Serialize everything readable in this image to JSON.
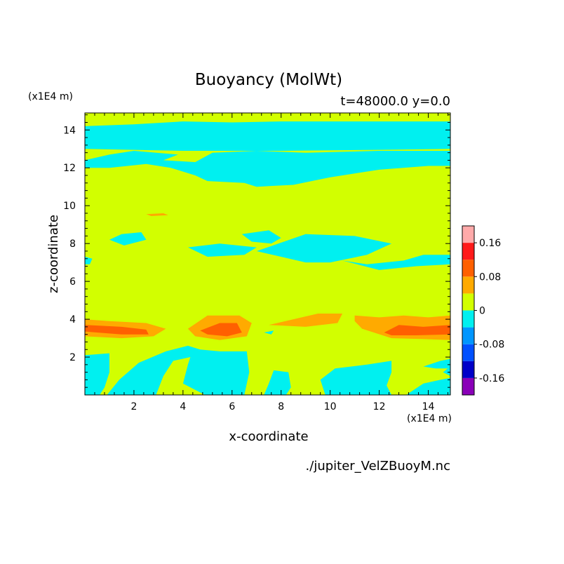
{
  "chart_data": {
    "type": "heatmap",
    "title": "Buoyancy (MolWt)",
    "subtitle": "t=48000.0 y=0.0",
    "xlabel": "x-coordinate",
    "ylabel": "z-coordinate",
    "x_unit": "(x1E4 m)",
    "y_unit": "(x1E4 m)",
    "source": "./jupiter_VelZBuoyM.nc",
    "xlim": [
      0,
      14.9
    ],
    "ylim": [
      0,
      14.9
    ],
    "x_ticks": [
      2,
      4,
      6,
      8,
      10,
      12,
      14
    ],
    "y_ticks": [
      2,
      4,
      6,
      8,
      10,
      12,
      14
    ],
    "colorbar": {
      "levels": [
        -0.2,
        -0.16,
        -0.12,
        -0.08,
        -0.04,
        0,
        0.04,
        0.08,
        0.12,
        0.16,
        0.2
      ],
      "colors": [
        "#8a00b8",
        "#0000c8",
        "#0050ff",
        "#0096ff",
        "#00f0f0",
        "#d2ff00",
        "#ffaa00",
        "#ff6000",
        "#ff1a1a",
        "#ffaaaa"
      ],
      "tick_labels": [
        "0.16",
        "0.08",
        "0",
        "-0.08",
        "-0.16"
      ],
      "tick_values": [
        0.16,
        0.08,
        0,
        -0.08,
        -0.16
      ]
    },
    "background_value": 0.02,
    "regions": [
      {
        "value": -0.02,
        "points": [
          [
            0,
            14.2
          ],
          [
            2,
            14.3
          ],
          [
            4,
            14.45
          ],
          [
            6,
            14.4
          ],
          [
            8,
            14.45
          ],
          [
            10,
            14.45
          ],
          [
            12,
            14.45
          ],
          [
            14.9,
            14.45
          ],
          [
            14.9,
            13.0
          ],
          [
            12,
            12.95
          ],
          [
            8,
            12.9
          ],
          [
            4,
            12.9
          ],
          [
            0,
            13.0
          ]
        ]
      },
      {
        "value": -0.02,
        "points": [
          [
            0,
            12.4
          ],
          [
            1,
            12.7
          ],
          [
            2,
            12.9
          ],
          [
            3.8,
            12.7
          ],
          [
            3.2,
            12.4
          ],
          [
            4.5,
            12.3
          ],
          [
            5.2,
            12.8
          ],
          [
            7,
            12.9
          ],
          [
            9,
            12.8
          ],
          [
            12,
            12.9
          ],
          [
            14.9,
            12.9
          ],
          [
            14.9,
            12.1
          ],
          [
            14,
            12.1
          ],
          [
            12,
            11.9
          ],
          [
            10,
            11.5
          ],
          [
            8.5,
            11.1
          ],
          [
            7,
            11.0
          ],
          [
            6.5,
            11.2
          ],
          [
            5,
            11.3
          ],
          [
            4.5,
            11.6
          ],
          [
            3.5,
            12.0
          ],
          [
            2.5,
            12.2
          ],
          [
            1,
            12.0
          ],
          [
            0,
            12.0
          ]
        ]
      },
      {
        "value": -0.02,
        "points": [
          [
            1,
            8.2
          ],
          [
            1.5,
            8.5
          ],
          [
            2.3,
            8.6
          ],
          [
            2.5,
            8.2
          ],
          [
            1.6,
            7.9
          ]
        ]
      },
      {
        "value": -0.02,
        "points": [
          [
            0,
            7.3
          ],
          [
            0.3,
            7.2
          ],
          [
            0.2,
            6.9
          ],
          [
            0,
            6.9
          ]
        ]
      },
      {
        "value": -0.02,
        "points": [
          [
            4.2,
            7.8
          ],
          [
            5.5,
            8.0
          ],
          [
            7,
            7.8
          ],
          [
            6.5,
            7.4
          ],
          [
            5,
            7.3
          ]
        ]
      },
      {
        "value": -0.02,
        "points": [
          [
            6.4,
            8.5
          ],
          [
            7.5,
            8.7
          ],
          [
            8,
            8.3
          ],
          [
            7.6,
            8.0
          ],
          [
            6.8,
            8.1
          ]
        ]
      },
      {
        "value": -0.02,
        "points": [
          [
            7,
            7.6
          ],
          [
            9,
            8.5
          ],
          [
            11,
            8.4
          ],
          [
            12.5,
            8.0
          ],
          [
            11.5,
            7.4
          ],
          [
            10,
            7.0
          ],
          [
            9,
            7.0
          ],
          [
            8,
            7.3
          ]
        ]
      },
      {
        "value": -0.02,
        "points": [
          [
            10.5,
            7.1
          ],
          [
            11.5,
            6.9
          ],
          [
            13,
            7.1
          ],
          [
            13.8,
            7.4
          ],
          [
            14.9,
            7.4
          ],
          [
            14.9,
            6.9
          ],
          [
            13.5,
            6.8
          ],
          [
            12,
            6.6
          ]
        ]
      },
      {
        "value": -0.02,
        "points": [
          [
            0,
            2.1
          ],
          [
            1,
            2.2
          ],
          [
            1,
            1.2
          ],
          [
            0.8,
            0.4
          ],
          [
            0.6,
            0
          ],
          [
            0,
            0
          ]
        ]
      },
      {
        "value": -0.02,
        "points": [
          [
            0.9,
            0
          ],
          [
            1.4,
            0.8
          ],
          [
            2.2,
            1.7
          ],
          [
            3.3,
            2.3
          ],
          [
            4.2,
            2.6
          ],
          [
            4.7,
            2.4
          ],
          [
            5.5,
            2.3
          ],
          [
            6.6,
            2.3
          ],
          [
            6.7,
            1.2
          ],
          [
            6.5,
            0
          ],
          [
            4.9,
            0
          ],
          [
            4.0,
            0.6
          ],
          [
            4.2,
            1.6
          ],
          [
            4.3,
            2.0
          ],
          [
            3.6,
            1.8
          ],
          [
            3.2,
            1.0
          ],
          [
            2.9,
            0
          ]
        ]
      },
      {
        "value": -0.02,
        "points": [
          [
            7.3,
            0
          ],
          [
            7.5,
            0.6
          ],
          [
            7.7,
            1.3
          ],
          [
            8.3,
            1.2
          ],
          [
            8.4,
            0.4
          ],
          [
            8.2,
            0
          ]
        ]
      },
      {
        "value": -0.02,
        "points": [
          [
            9.8,
            0
          ],
          [
            9.6,
            0.8
          ],
          [
            10.2,
            1.4
          ],
          [
            11.5,
            1.6
          ],
          [
            12.5,
            1.8
          ],
          [
            12.5,
            1.2
          ],
          [
            12.3,
            0.5
          ],
          [
            12.5,
            0
          ]
        ]
      },
      {
        "value": -0.02,
        "points": [
          [
            13.8,
            1.5
          ],
          [
            14.5,
            1.8
          ],
          [
            14.9,
            1.9
          ],
          [
            14.9,
            1.4
          ],
          [
            14.3,
            1.4
          ]
        ]
      },
      {
        "value": -0.02,
        "points": [
          [
            13.1,
            0
          ],
          [
            13.8,
            0.6
          ],
          [
            14.5,
            0.8
          ],
          [
            14.9,
            0.9
          ],
          [
            14.9,
            0
          ]
        ]
      },
      {
        "value": -0.02,
        "points": [
          [
            14.6,
            1.2
          ],
          [
            14.9,
            1.5
          ],
          [
            14.9,
            1.0
          ]
        ]
      },
      {
        "value": 0.06,
        "points": [
          [
            0,
            4.0
          ],
          [
            1,
            3.9
          ],
          [
            2.5,
            3.8
          ],
          [
            3.3,
            3.5
          ],
          [
            2.8,
            3.1
          ],
          [
            1.5,
            3.0
          ],
          [
            0,
            3.1
          ]
        ]
      },
      {
        "value": 0.06,
        "points": [
          [
            4.2,
            3.5
          ],
          [
            5.0,
            4.2
          ],
          [
            6.3,
            4.2
          ],
          [
            6.8,
            3.8
          ],
          [
            6.6,
            3.1
          ],
          [
            5.5,
            2.9
          ],
          [
            4.5,
            3.1
          ]
        ]
      },
      {
        "value": 0.06,
        "points": [
          [
            7.5,
            3.7
          ],
          [
            8.5,
            4.0
          ],
          [
            9.5,
            4.3
          ],
          [
            10.5,
            4.3
          ],
          [
            10.3,
            3.8
          ],
          [
            9,
            3.6
          ]
        ]
      },
      {
        "value": 0.06,
        "points": [
          [
            11,
            4.2
          ],
          [
            12,
            4.1
          ],
          [
            13,
            4.2
          ],
          [
            14,
            4.1
          ],
          [
            14.9,
            4.2
          ],
          [
            14.9,
            2.9
          ],
          [
            13.8,
            2.95
          ],
          [
            12.5,
            3.0
          ],
          [
            11.3,
            3.5
          ],
          [
            11.0,
            3.9
          ]
        ]
      },
      {
        "value": 0.1,
        "points": [
          [
            0,
            3.7
          ],
          [
            1.5,
            3.6
          ],
          [
            2.5,
            3.45
          ],
          [
            2.6,
            3.2
          ],
          [
            1.5,
            3.2
          ],
          [
            0,
            3.35
          ]
        ]
      },
      {
        "value": 0.1,
        "points": [
          [
            4.7,
            3.4
          ],
          [
            5.5,
            3.8
          ],
          [
            6.2,
            3.8
          ],
          [
            6.4,
            3.3
          ],
          [
            5.8,
            3.1
          ],
          [
            5,
            3.2
          ]
        ]
      },
      {
        "value": 0.1,
        "points": [
          [
            12.2,
            3.3
          ],
          [
            12.8,
            3.7
          ],
          [
            13.8,
            3.6
          ],
          [
            14.9,
            3.7
          ],
          [
            14.9,
            3.2
          ],
          [
            13.5,
            3.15
          ],
          [
            12.5,
            3.15
          ]
        ]
      },
      {
        "value": 0.06,
        "points": [
          [
            2.5,
            9.55
          ],
          [
            3.2,
            9.6
          ],
          [
            3.4,
            9.5
          ],
          [
            2.7,
            9.45
          ]
        ]
      },
      {
        "value": -0.02,
        "points": [
          [
            7.3,
            3.3
          ],
          [
            7.7,
            3.4
          ],
          [
            7.6,
            3.2
          ]
        ]
      }
    ]
  }
}
